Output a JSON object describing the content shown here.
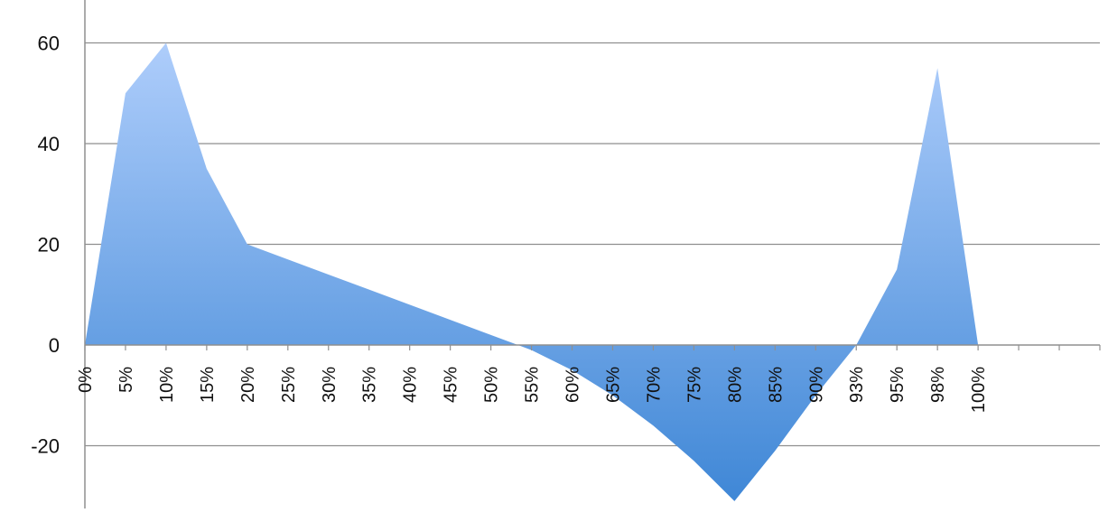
{
  "chart_data": {
    "type": "area",
    "title": "",
    "xlabel": "",
    "ylabel": "",
    "categories": [
      "0%",
      "5%",
      "10%",
      "15%",
      "20%",
      "25%",
      "30%",
      "35%",
      "40%",
      "45%",
      "50%",
      "55%",
      "60%",
      "65%",
      "70%",
      "75%",
      "80%",
      "85%",
      "90%",
      "93%",
      "95%",
      "98%",
      "100%"
    ],
    "series": [
      {
        "values": [
          0,
          50,
          60,
          35,
          20,
          17,
          14,
          11,
          8,
          5,
          2,
          -1,
          -5,
          -10,
          -16,
          -23,
          -31,
          -21,
          -10,
          0,
          15,
          55,
          0
        ]
      }
    ],
    "y_ticks": [
      "60",
      "40",
      "20",
      "0",
      "-20"
    ],
    "ylim": [
      -31,
      69
    ],
    "x_category_slots": 25,
    "grid": true,
    "legend": "none",
    "colors": {
      "fill_top": "#aecdfb",
      "fill_bottom": "#3f87d6",
      "grid": "#8f8f8f"
    }
  }
}
